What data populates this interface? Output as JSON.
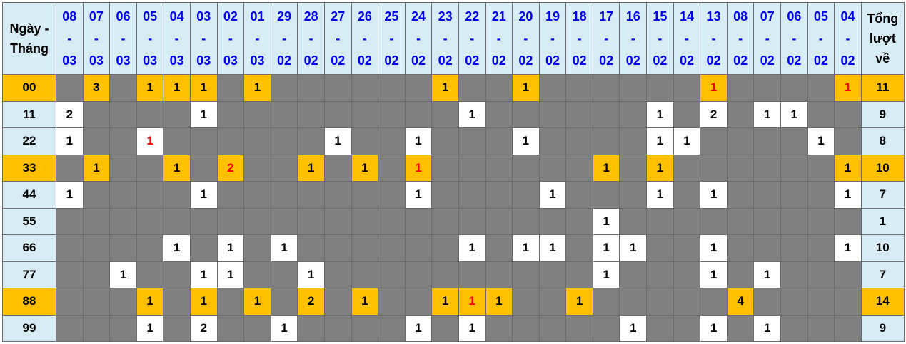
{
  "header": {
    "corner_label": "Ngày - Tháng",
    "total_label": "Tổng lượt về",
    "dates": [
      {
        "day": "08",
        "month": "03"
      },
      {
        "day": "07",
        "month": "03"
      },
      {
        "day": "06",
        "month": "03"
      },
      {
        "day": "05",
        "month": "03"
      },
      {
        "day": "04",
        "month": "03"
      },
      {
        "day": "03",
        "month": "03"
      },
      {
        "day": "02",
        "month": "03"
      },
      {
        "day": "01",
        "month": "03"
      },
      {
        "day": "29",
        "month": "02"
      },
      {
        "day": "28",
        "month": "02"
      },
      {
        "day": "27",
        "month": "02"
      },
      {
        "day": "26",
        "month": "02"
      },
      {
        "day": "25",
        "month": "02"
      },
      {
        "day": "24",
        "month": "02"
      },
      {
        "day": "23",
        "month": "02"
      },
      {
        "day": "22",
        "month": "02"
      },
      {
        "day": "21",
        "month": "02"
      },
      {
        "day": "20",
        "month": "02"
      },
      {
        "day": "19",
        "month": "02"
      },
      {
        "day": "18",
        "month": "02"
      },
      {
        "day": "17",
        "month": "02"
      },
      {
        "day": "16",
        "month": "02"
      },
      {
        "day": "15",
        "month": "02"
      },
      {
        "day": "14",
        "month": "02"
      },
      {
        "day": "13",
        "month": "02"
      },
      {
        "day": "08",
        "month": "02"
      },
      {
        "day": "07",
        "month": "02"
      },
      {
        "day": "06",
        "month": "02"
      },
      {
        "day": "05",
        "month": "02"
      },
      {
        "day": "04",
        "month": "02"
      }
    ],
    "separator": "-"
  },
  "colors": {
    "header_bg": "#d7ecf5",
    "highlight": "#ffc000",
    "empty": "#808080",
    "date_text": "#0000ee",
    "red_value": "#ff0000"
  },
  "rows": [
    {
      "label": "00",
      "highlight": true,
      "total": "11",
      "cells": [
        "",
        "3",
        "",
        "1",
        "1",
        "1",
        "",
        "1",
        "",
        "",
        "",
        "",
        "",
        "",
        "1",
        "",
        "",
        "1",
        "",
        "",
        "",
        "",
        "",
        "",
        "1",
        "",
        "",
        "",
        "",
        "1"
      ],
      "red": [
        "13-02",
        "04-02"
      ]
    },
    {
      "label": "11",
      "highlight": false,
      "total": "9",
      "cells": [
        "2",
        "",
        "",
        "",
        "",
        "1",
        "",
        "",
        "",
        "",
        "",
        "",
        "",
        "",
        "",
        "1",
        "",
        "",
        "",
        "",
        "",
        "",
        "1",
        "",
        "2",
        "",
        "1",
        "1",
        "",
        ""
      ],
      "red": []
    },
    {
      "label": "22",
      "highlight": false,
      "total": "8",
      "cells": [
        "1",
        "",
        "",
        "1",
        "",
        "",
        "",
        "",
        "",
        "",
        "1",
        "",
        "",
        "1",
        "",
        "",
        "",
        "1",
        "",
        "",
        "",
        "",
        "1",
        "1",
        "",
        "",
        "",
        "",
        "1",
        ""
      ],
      "red": [
        "05-03"
      ]
    },
    {
      "label": "33",
      "highlight": true,
      "total": "10",
      "cells": [
        "",
        "1",
        "",
        "",
        "1",
        "",
        "2",
        "",
        "",
        "1",
        "",
        "1",
        "",
        "1",
        "",
        "",
        "",
        "",
        "",
        "",
        "1",
        "",
        "1",
        "",
        "",
        "",
        "",
        "",
        "",
        "1"
      ],
      "red": [
        "02-03",
        "24-02"
      ]
    },
    {
      "label": "44",
      "highlight": false,
      "total": "7",
      "cells": [
        "1",
        "",
        "",
        "",
        "",
        "1",
        "",
        "",
        "",
        "",
        "",
        "",
        "",
        "1",
        "",
        "",
        "",
        "",
        "1",
        "",
        "",
        "",
        "1",
        "",
        "1",
        "",
        "",
        "",
        "",
        "1"
      ],
      "red": []
    },
    {
      "label": "55",
      "highlight": false,
      "total": "1",
      "cells": [
        "",
        "",
        "",
        "",
        "",
        "",
        "",
        "",
        "",
        "",
        "",
        "",
        "",
        "",
        "",
        "",
        "",
        "",
        "",
        "",
        "1",
        "",
        "",
        "",
        "",
        "",
        "",
        "",
        "",
        ""
      ],
      "red": []
    },
    {
      "label": "66",
      "highlight": false,
      "total": "10",
      "cells": [
        "",
        "",
        "",
        "",
        "1",
        "",
        "1",
        "",
        "1",
        "",
        "",
        "",
        "",
        "",
        "",
        "1",
        "",
        "1",
        "1",
        "",
        "1",
        "1",
        "",
        "",
        "1",
        "",
        "",
        "",
        "",
        "1"
      ],
      "red": []
    },
    {
      "label": "77",
      "highlight": false,
      "total": "7",
      "cells": [
        "",
        "",
        "1",
        "",
        "",
        "1",
        "1",
        "",
        "",
        "1",
        "",
        "",
        "",
        "",
        "",
        "",
        "",
        "",
        "",
        "",
        "1",
        "",
        "",
        "",
        "1",
        "",
        "1",
        "",
        "",
        ""
      ],
      "red": []
    },
    {
      "label": "88",
      "highlight": true,
      "total": "14",
      "cells": [
        "",
        "",
        "",
        "1",
        "",
        "1",
        "",
        "1",
        "",
        "2",
        "",
        "1",
        "",
        "",
        "1",
        "1",
        "1",
        "",
        "",
        "1",
        "",
        "",
        "",
        "",
        "",
        "4",
        "",
        "",
        "",
        ""
      ],
      "red": [
        "22-02"
      ]
    },
    {
      "label": "99",
      "highlight": false,
      "total": "9",
      "cells": [
        "",
        "",
        "",
        "1",
        "",
        "2",
        "",
        "",
        "1",
        "",
        "",
        "",
        "",
        "1",
        "",
        "1",
        "",
        "",
        "",
        "",
        "",
        "1",
        "",
        "",
        "1",
        "",
        "1",
        "",
        "",
        ""
      ],
      "red": []
    }
  ]
}
